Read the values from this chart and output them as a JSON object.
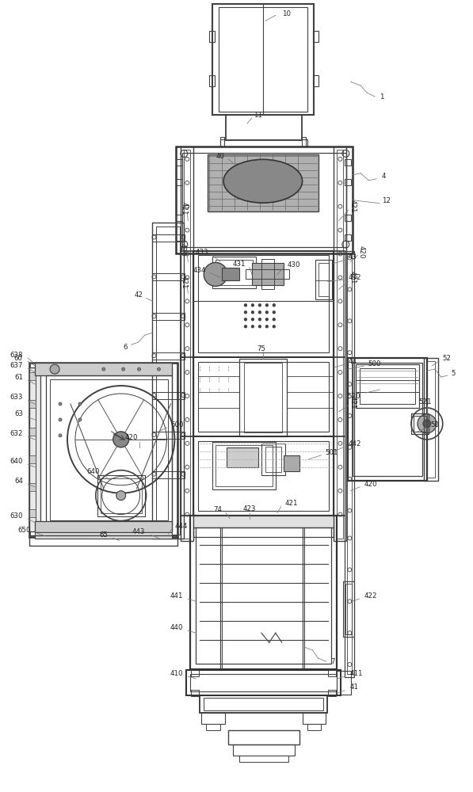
{
  "bg_color": "#ffffff",
  "lc": "#404040",
  "lc2": "#606060",
  "gray_fill": "#aaaaaa",
  "dark_fill": "#888888",
  "med_fill": "#cccccc"
}
